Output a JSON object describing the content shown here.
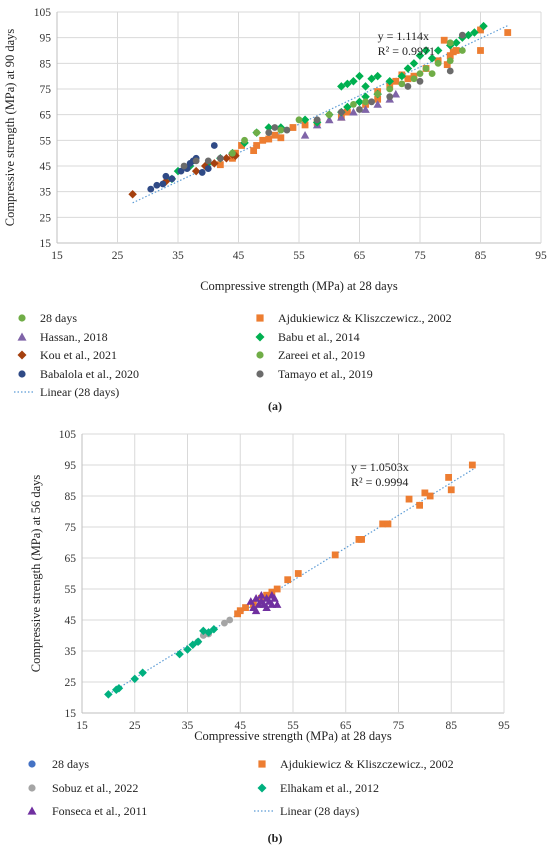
{
  "chart_data": [
    {
      "type": "scatter",
      "panel_label": "(a)",
      "xlabel": "Compressive strength (MPa) at 28 days",
      "ylabel": "Compressive strength (MPa) at 90 days",
      "xlim": [
        15,
        95
      ],
      "ylim": [
        15,
        105
      ],
      "xticks": [
        15,
        25,
        35,
        45,
        55,
        65,
        75,
        85,
        95
      ],
      "yticks": [
        15,
        25,
        35,
        45,
        55,
        65,
        75,
        85,
        95,
        105
      ],
      "grid": true,
      "legend_position": "bottom",
      "annotation": {
        "equation": "y = 1.114x",
        "r2": "R² = 0.9971",
        "at": [
          68,
          94
        ]
      },
      "trendline": {
        "name": "Linear (28 days)",
        "slope": 1.114,
        "x_range": [
          27.5,
          89.5
        ],
        "color": "#5b9bd5"
      },
      "series": [
        {
          "name": "28 days",
          "marker": "circle",
          "color": "#70ad47",
          "points": []
        },
        {
          "name": "Ajdukiewicz & Kliszczewicz., 2002",
          "marker": "square",
          "color": "#ed7d31",
          "points": [
            [
              42,
              45.5
            ],
            [
              44,
              48
            ],
            [
              44.5,
              50
            ],
            [
              45.5,
              53
            ],
            [
              47.5,
              51
            ],
            [
              48,
              53
            ],
            [
              49,
              55
            ],
            [
              50,
              55.5
            ],
            [
              51,
              57
            ],
            [
              52,
              56
            ],
            [
              54,
              60
            ],
            [
              56,
              61
            ],
            [
              58,
              62
            ],
            [
              62,
              64
            ],
            [
              63,
              66
            ],
            [
              66,
              69
            ],
            [
              68,
              71
            ],
            [
              68,
              74
            ],
            [
              70,
              76
            ],
            [
              71,
              78
            ],
            [
              72,
              80.5
            ],
            [
              73,
              79
            ],
            [
              74,
              80
            ],
            [
              76,
              83
            ],
            [
              78,
              86
            ],
            [
              79.5,
              84.5
            ],
            [
              80,
              88
            ],
            [
              80.5,
              89.5
            ],
            [
              81,
              90
            ],
            [
              79,
              94
            ],
            [
              85,
              90
            ],
            [
              85,
              98
            ],
            [
              89.5,
              97
            ]
          ]
        },
        {
          "name": "Hassan., 2018",
          "marker": "triangle",
          "color": "#7f64a8",
          "points": [
            [
              56,
              57
            ],
            [
              58,
              61
            ],
            [
              60,
              63
            ],
            [
              62,
              64
            ],
            [
              64,
              66
            ],
            [
              66,
              67
            ],
            [
              68,
              69
            ],
            [
              70,
              71
            ],
            [
              71,
              73
            ]
          ]
        },
        {
          "name": "Babu et al., 2014",
          "marker": "diamond",
          "color": "#00b050",
          "points": [
            [
              34,
              40
            ],
            [
              35,
              43
            ],
            [
              37,
              45
            ],
            [
              40,
              46
            ],
            [
              42,
              48
            ],
            [
              44,
              50
            ],
            [
              46,
              54
            ],
            [
              48,
              58
            ],
            [
              50,
              60
            ],
            [
              52,
              60
            ],
            [
              56,
              63
            ],
            [
              58,
              62
            ],
            [
              60,
              65
            ],
            [
              62,
              66
            ],
            [
              63,
              68
            ],
            [
              65,
              70
            ],
            [
              66,
              72
            ],
            [
              68,
              73
            ],
            [
              62,
              76
            ],
            [
              63,
              77
            ],
            [
              64,
              78
            ],
            [
              65,
              80
            ],
            [
              66,
              76
            ],
            [
              67,
              79
            ],
            [
              68,
              80
            ],
            [
              70,
              78
            ],
            [
              72,
              80
            ],
            [
              73,
              83
            ],
            [
              74,
              85
            ],
            [
              75,
              88
            ],
            [
              76,
              90
            ],
            [
              77,
              87
            ],
            [
              78,
              90
            ],
            [
              80,
              92
            ],
            [
              81,
              93
            ],
            [
              82,
              95
            ],
            [
              83,
              96
            ],
            [
              84,
              97
            ],
            [
              85.5,
              99.5
            ]
          ]
        },
        {
          "name": "Kou et al., 2021",
          "marker": "diamond",
          "color": "#a5400f",
          "points": [
            [
              27.5,
              34
            ],
            [
              33,
              39
            ],
            [
              38,
              43
            ],
            [
              39.5,
              45
            ],
            [
              41,
              46
            ],
            [
              43,
              48
            ],
            [
              44,
              49.5
            ],
            [
              44.5,
              49
            ]
          ]
        },
        {
          "name": "Zareei et al., 2019",
          "marker": "circle",
          "color": "#70ad47",
          "points": [
            [
              44,
              50
            ],
            [
              46,
              55
            ],
            [
              48,
              58
            ],
            [
              52,
              59
            ],
            [
              55,
              63
            ],
            [
              60,
              65
            ],
            [
              64,
              69
            ],
            [
              66,
              70
            ],
            [
              68,
              73
            ],
            [
              70,
              75
            ],
            [
              72,
              77
            ],
            [
              74,
              79
            ],
            [
              75,
              81
            ],
            [
              76,
              83
            ],
            [
              77,
              81
            ],
            [
              78,
              85
            ],
            [
              80,
              86
            ],
            [
              82,
              90
            ],
            [
              80,
              93
            ]
          ]
        },
        {
          "name": "Babalola et al., 2020",
          "marker": "circle",
          "color": "#2f4a86",
          "points": [
            [
              30.5,
              36
            ],
            [
              31.5,
              37.5
            ],
            [
              32.5,
              38
            ],
            [
              33,
              41
            ],
            [
              34,
              40
            ],
            [
              35.5,
              43
            ],
            [
              36.5,
              44
            ],
            [
              37,
              46
            ],
            [
              37.5,
              47
            ],
            [
              38,
              48
            ],
            [
              39,
              42.5
            ],
            [
              40,
              44
            ],
            [
              41,
              53
            ]
          ]
        },
        {
          "name": "Tamayo et al., 2019",
          "marker": "circle",
          "color": "#6b6b6b",
          "points": [
            [
              36,
              45
            ],
            [
              38,
              47
            ],
            [
              40,
              47
            ],
            [
              42,
              48
            ],
            [
              50,
              58
            ],
            [
              51,
              60
            ],
            [
              53,
              59
            ],
            [
              58,
              63
            ],
            [
              62,
              66
            ],
            [
              65,
              67
            ],
            [
              67,
              70
            ],
            [
              70,
              72
            ],
            [
              73,
              76
            ],
            [
              75,
              78
            ],
            [
              80,
              82
            ],
            [
              82,
              96
            ]
          ]
        }
      ]
    },
    {
      "type": "scatter",
      "panel_label": "(b)",
      "xlabel": "Compressive strength (MPa) at 28 days",
      "ylabel": "Compressive strength (MPa) at 56 days",
      "xlim": [
        15,
        95
      ],
      "ylim": [
        15,
        105
      ],
      "xticks": [
        15,
        25,
        35,
        45,
        55,
        65,
        75,
        85,
        95
      ],
      "yticks": [
        15,
        25,
        35,
        45,
        55,
        65,
        75,
        85,
        95,
        105
      ],
      "grid": true,
      "legend_position": "bottom",
      "annotation": {
        "equation": "y = 1.0503x",
        "r2": "R² = 0.9994",
        "at": [
          66,
          93
        ]
      },
      "trendline": {
        "name": "Linear (28 days)",
        "slope": 1.0503,
        "x_range": [
          19.5,
          89.5
        ],
        "color": "#5b9bd5"
      },
      "series": [
        {
          "name": "28 days",
          "marker": "circle",
          "color": "#4472c4",
          "points": []
        },
        {
          "name": "Ajdukiewicz & Kliszczewicz., 2002",
          "marker": "square",
          "color": "#ed7d31",
          "points": [
            [
              44.5,
              47
            ],
            [
              45,
              48
            ],
            [
              46,
              49
            ],
            [
              47.5,
              50
            ],
            [
              49,
              52
            ],
            [
              50,
              53
            ],
            [
              51,
              54
            ],
            [
              52,
              55
            ],
            [
              54,
              58
            ],
            [
              56,
              60
            ],
            [
              63,
              66
            ],
            [
              67.5,
              71
            ],
            [
              68,
              71
            ],
            [
              72,
              76
            ],
            [
              73,
              76
            ],
            [
              77,
              84
            ],
            [
              79,
              82
            ],
            [
              80,
              86
            ],
            [
              81,
              85
            ],
            [
              84.5,
              91
            ],
            [
              85,
              87
            ],
            [
              89,
              95
            ]
          ]
        },
        {
          "name": "Sobuz et al., 2022",
          "marker": "circle",
          "color": "#a5a5a5",
          "points": [
            [
              37,
              38
            ],
            [
              38,
              40
            ],
            [
              39,
              40.5
            ],
            [
              42,
              44
            ],
            [
              43,
              45
            ]
          ]
        },
        {
          "name": "Elhakam et al., 2012",
          "marker": "diamond",
          "color": "#00b07f",
          "points": [
            [
              20,
              21
            ],
            [
              21.5,
              22.5
            ],
            [
              22,
              23
            ],
            [
              25,
              26
            ],
            [
              26.5,
              28
            ],
            [
              33.5,
              34
            ],
            [
              35,
              35.5
            ],
            [
              36,
              37
            ],
            [
              37,
              38
            ],
            [
              38,
              41.5
            ],
            [
              39,
              41
            ],
            [
              40,
              42
            ]
          ]
        },
        {
          "name": "Fonseca et al., 2011",
          "marker": "triangle",
          "color": "#7030a0",
          "points": [
            [
              47,
              51
            ],
            [
              47.5,
              49
            ],
            [
              48,
              52
            ],
            [
              48,
              48
            ],
            [
              48.5,
              50
            ],
            [
              49,
              51
            ],
            [
              49,
              53
            ],
            [
              49.5,
              50
            ],
            [
              50,
              52
            ],
            [
              50,
              49
            ],
            [
              50.5,
              51
            ],
            [
              51,
              53
            ],
            [
              51,
              50
            ],
            [
              51.5,
              52
            ],
            [
              52,
              50
            ]
          ]
        }
      ]
    }
  ]
}
